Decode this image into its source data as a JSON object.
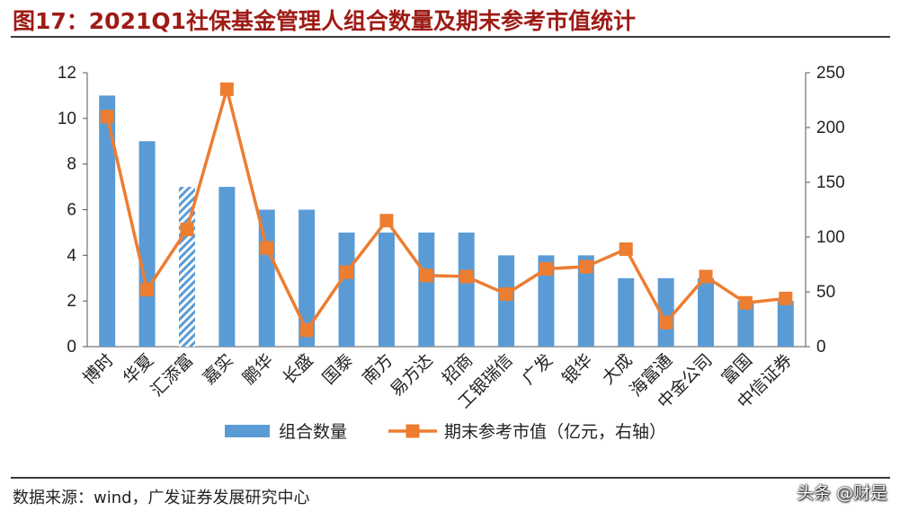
{
  "header": {
    "title": "图17：2021Q1社保基金管理人组合数量及期末参考市值统计"
  },
  "footer": {
    "source": "数据来源：wind，广发证券发展研究中心",
    "watermark": "头条 @财是"
  },
  "chart_data": {
    "type": "bar",
    "categories": [
      "博时",
      "华夏",
      "汇添富",
      "嘉实",
      "鹏华",
      "长盛",
      "国泰",
      "南方",
      "易方达",
      "招商",
      "工银瑞信",
      "广发",
      "银华",
      "大成",
      "海富通",
      "中金公司",
      "富国",
      "中信证券"
    ],
    "series": [
      {
        "name": "组合数量",
        "type": "bar",
        "axis": "left",
        "values": [
          11,
          9,
          7,
          7,
          6,
          6,
          5,
          5,
          5,
          5,
          4,
          4,
          4,
          3,
          3,
          3,
          2,
          2
        ]
      },
      {
        "name": "期末参考市值（亿元，右轴）",
        "type": "line",
        "axis": "right",
        "values": [
          210,
          52,
          107,
          235,
          90,
          15,
          68,
          115,
          65,
          64,
          48,
          71,
          73,
          89,
          22,
          64,
          40,
          44
        ]
      }
    ],
    "highlight_category": "汇添富",
    "left_axis": {
      "ylim": [
        0,
        12
      ],
      "ticks": [
        "0",
        "2",
        "4",
        "6",
        "8",
        "10",
        "12"
      ]
    },
    "right_axis": {
      "ylim": [
        0,
        250
      ],
      "ticks": [
        "0",
        "50",
        "100",
        "150",
        "200",
        "250"
      ]
    },
    "colors": {
      "bar": "#5b9bd5",
      "line": "#ed7d31",
      "highlight": "#5b9bd5"
    },
    "legend_position": "bottom",
    "grid": false
  }
}
